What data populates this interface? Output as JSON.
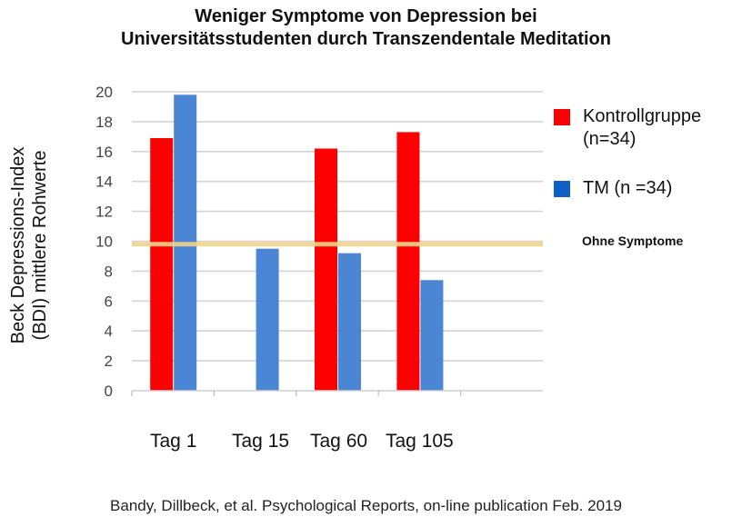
{
  "chart_data": {
    "type": "bar",
    "title_lines": [
      "Weniger Symptome von Depression bei",
      "Universitätsstudenten durch Transzendentale Meditation"
    ],
    "ylabel_lines": [
      "Beck Depressions-Index",
      "(BDI) mittlere Rohwerte"
    ],
    "xlabel": "",
    "categories": [
      "Tag 1",
      "Tag 15",
      "Tag 60",
      "Tag 105"
    ],
    "series": [
      {
        "name": "Kontrollgruppe (n=34)",
        "legend_lines": [
          "Kontrollgruppe",
          "(n=34)"
        ],
        "color": "#ff0000",
        "values": [
          16.9,
          null,
          16.2,
          17.3
        ]
      },
      {
        "name": "TM (n =34)",
        "legend_lines": [
          "TM (n =34)"
        ],
        "color": "#4a86d4",
        "legend_color": "#0f5fc8",
        "values": [
          19.8,
          9.5,
          9.2,
          7.4
        ]
      }
    ],
    "reference_line": {
      "label": "Ohne Symptome",
      "value": 9.8,
      "color": "#f0d38a"
    },
    "ylim": [
      0,
      20
    ],
    "yticks": [
      0,
      2,
      4,
      6,
      8,
      10,
      12,
      14,
      16,
      18,
      20
    ],
    "grid": true,
    "legend_position": "right",
    "source": "Bandy, Dillbeck, et al. Psychological Reports, on-line publication Feb. 2019"
  }
}
